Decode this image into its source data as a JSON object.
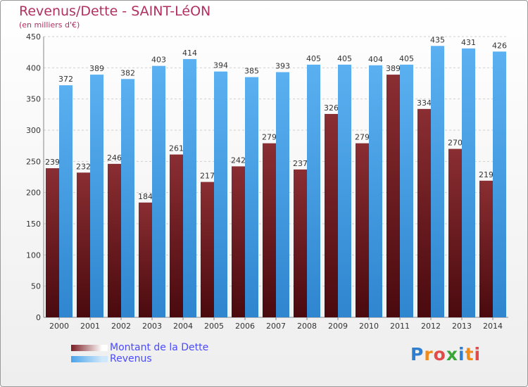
{
  "header": {
    "title": "Revenus/Dette - SAINT-LéON",
    "subtitle": "(en milliers d'€)"
  },
  "legend": {
    "items": [
      {
        "label": "Montant de la Dette",
        "color": "#7a1e24"
      },
      {
        "label": "Revenus",
        "color": "#4aa3e8"
      }
    ]
  },
  "logo": {
    "text": "Proxiti",
    "colors": [
      "#2e7fd0",
      "#f08a1a",
      "#e34a4a",
      "#3aa63a",
      "#2e7fd0",
      "#f08a1a",
      "#e34a4a"
    ]
  },
  "chart_data": {
    "type": "bar",
    "categories": [
      "2000",
      "2001",
      "2002",
      "2003",
      "2004",
      "2005",
      "2006",
      "2007",
      "2008",
      "2009",
      "2010",
      "2011",
      "2012",
      "2013",
      "2014"
    ],
    "series": [
      {
        "name": "Montant de la Dette",
        "color": "#7a1e24",
        "values": [
          239,
          232,
          246,
          184,
          261,
          217,
          242,
          279,
          237,
          326,
          279,
          389,
          334,
          270,
          219
        ]
      },
      {
        "name": "Revenus",
        "color": "#4aa3e8",
        "values": [
          372,
          389,
          382,
          403,
          414,
          394,
          385,
          393,
          405,
          405,
          404,
          405,
          435,
          431,
          426
        ]
      }
    ],
    "ylim": [
      0,
      450
    ],
    "yticks": [
      0,
      50,
      100,
      150,
      200,
      250,
      300,
      350,
      400,
      450
    ],
    "grid": true
  }
}
